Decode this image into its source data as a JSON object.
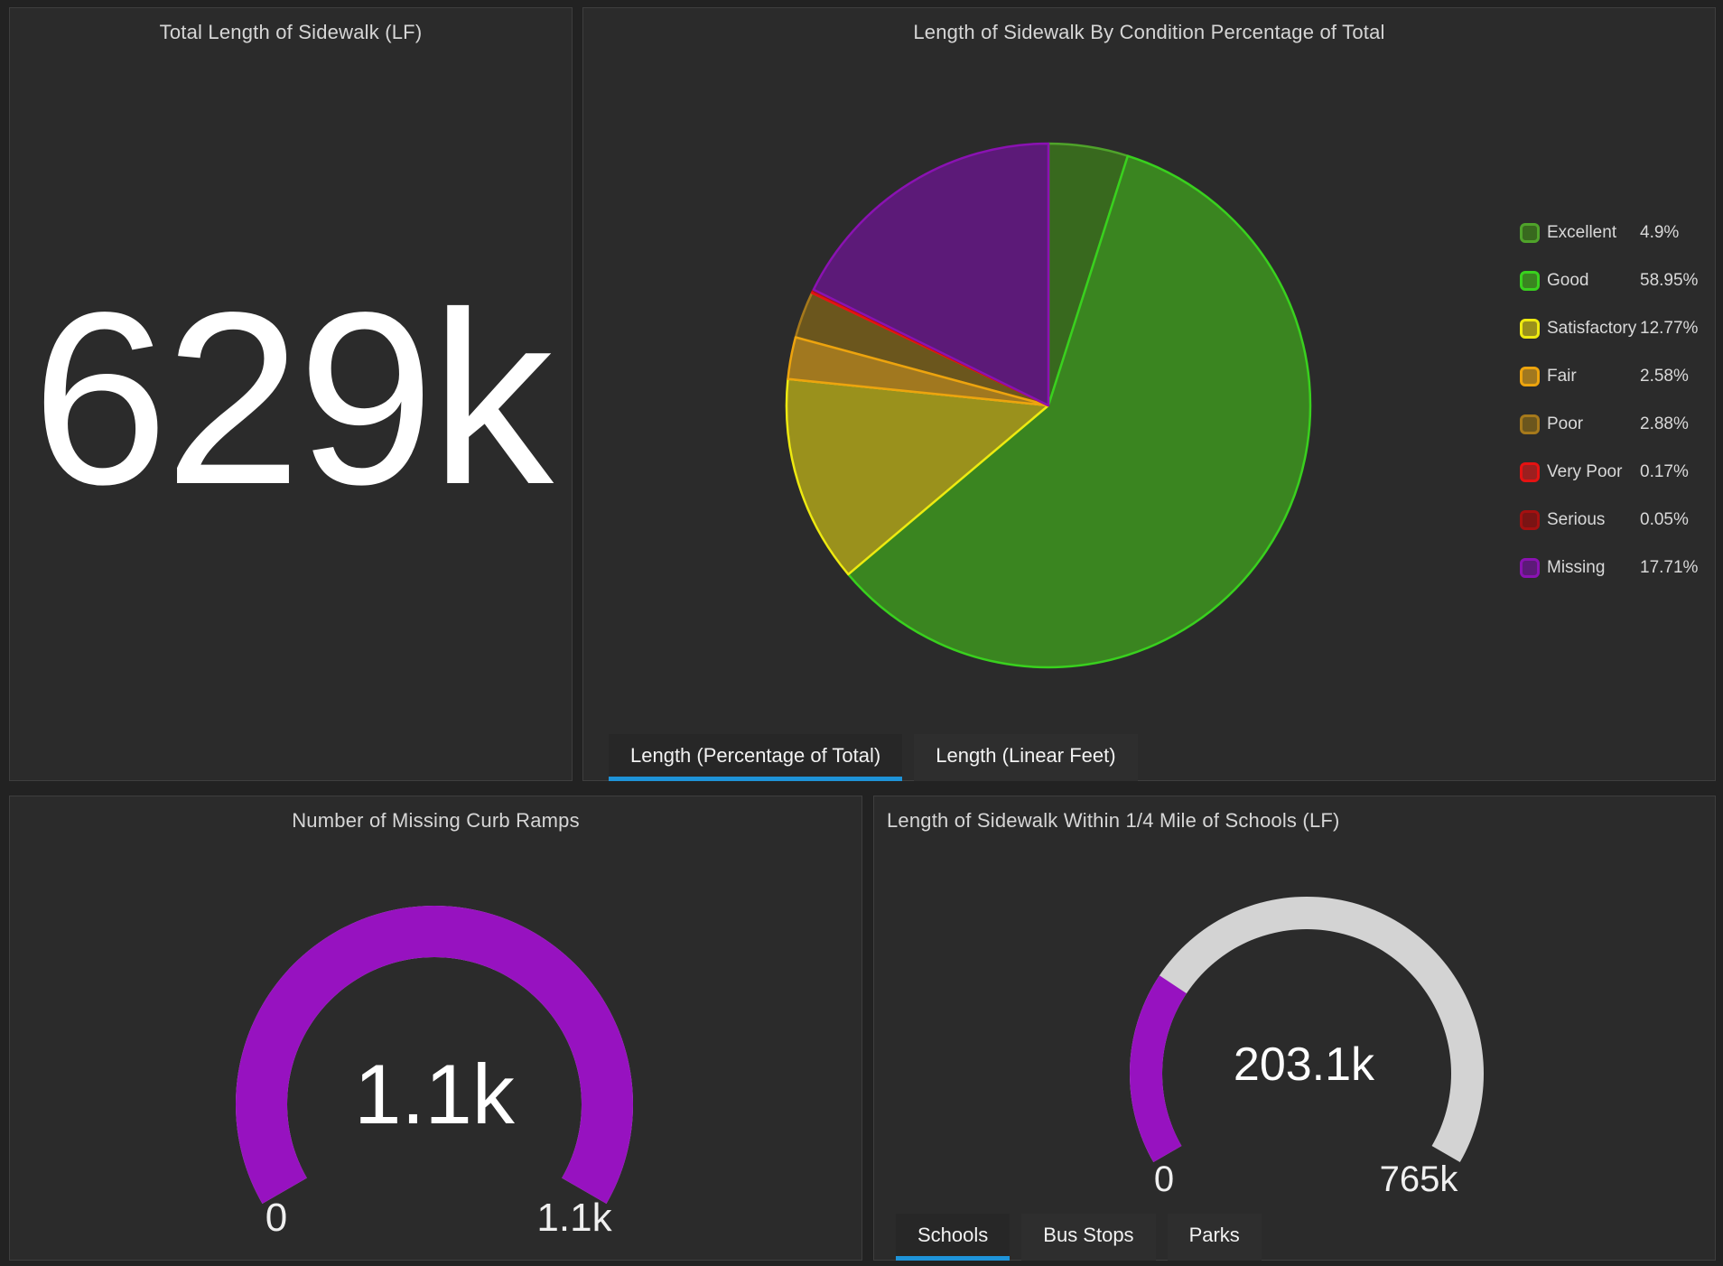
{
  "colors": {
    "accent_blue": "#1e93d8",
    "gauge_fill": "#9712c0",
    "gauge_track": "#d3d3d3",
    "panel_bg": "#2b2b2b",
    "page_bg": "#222222"
  },
  "panels": {
    "total_length": {
      "title": "Total Length of Sidewalk (LF)",
      "value": "629k"
    },
    "condition_pie": {
      "title": "Length of Sidewalk By Condition Percentage of Total",
      "tabs": [
        {
          "label": "Length (Percentage of Total)",
          "active": true
        },
        {
          "label": "Length (Linear Feet)",
          "active": false
        }
      ]
    },
    "curb_ramps_gauge": {
      "title": "Number of Missing Curb Ramps",
      "value": "1.1k",
      "min": "0",
      "max": "1.1k"
    },
    "schools_gauge": {
      "title": "Length of Sidewalk Within 1/4 Mile of Schools (LF)",
      "value": "203.1k",
      "min": "0",
      "max": "765k",
      "tabs": [
        {
          "label": "Schools",
          "active": true
        },
        {
          "label": "Bus Stops",
          "active": false
        },
        {
          "label": "Parks",
          "active": false
        }
      ]
    }
  },
  "chart_data": [
    {
      "type": "indicator",
      "title": "Total Length of Sidewalk (LF)",
      "value": 629000,
      "value_display": "629k"
    },
    {
      "type": "pie",
      "title": "Length of Sidewalk By Condition Percentage of Total",
      "categories": [
        "Excellent",
        "Good",
        "Satisfactory",
        "Fair",
        "Poor",
        "Very Poor",
        "Serious",
        "Missing"
      ],
      "values": [
        4.9,
        58.95,
        12.77,
        2.58,
        2.88,
        0.17,
        0.05,
        17.71
      ],
      "value_labels": [
        "4.9%",
        "58.95%",
        "12.77%",
        "2.58%",
        "2.88%",
        "0.17%",
        "0.05%",
        "17.71%"
      ],
      "slice_fills": [
        "#38691e",
        "#3a8520",
        "#9a911c",
        "#a1781f",
        "#6b561d",
        "#9c1f1f",
        "#7a1414",
        "#5c1a78"
      ],
      "slice_strokes": [
        "#4fa32a",
        "#39d11e",
        "#eeea10",
        "#eda40e",
        "#a6791b",
        "#e51212",
        "#a51010",
        "#8a12b2"
      ],
      "stroke_z_order": [
        0,
        1,
        2,
        4,
        3,
        5,
        6,
        7
      ],
      "start_angle_deg": 0,
      "direction": "clockwise",
      "legend_position": "right"
    },
    {
      "type": "gauge",
      "title": "Number of Missing Curb Ramps",
      "value": 1100,
      "min": 0,
      "max": 1100,
      "fraction": 1.0,
      "value_display": "1.1k",
      "min_display": "0",
      "max_display": "1.1k",
      "arc_span_deg": 240
    },
    {
      "type": "gauge",
      "title": "Length of Sidewalk Within 1/4 Mile of Schools (LF)",
      "value": 203100,
      "min": 0,
      "max": 765000,
      "fraction": 0.2655,
      "value_display": "203.1k",
      "min_display": "0",
      "max_display": "765k",
      "arc_span_deg": 240
    }
  ]
}
